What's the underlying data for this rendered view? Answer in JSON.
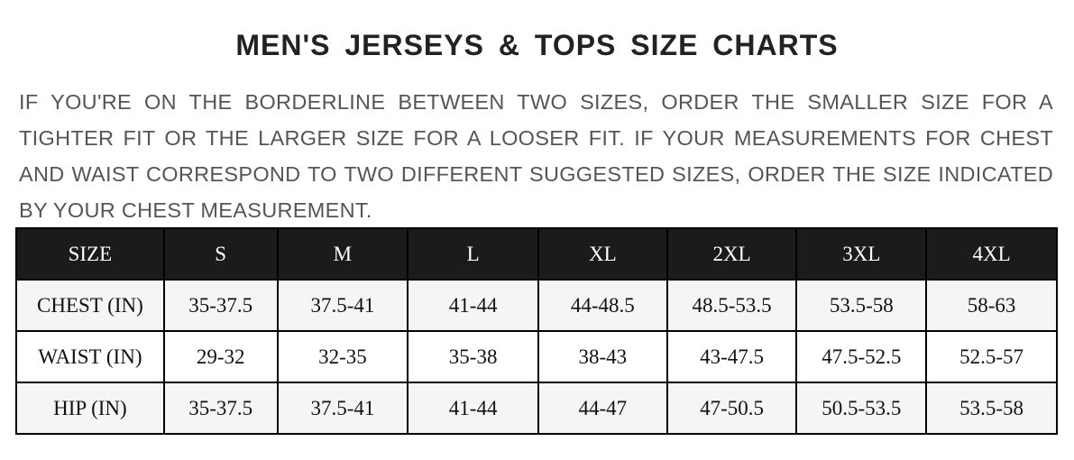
{
  "title": "MEN'S JERSEYS & TOPS SIZE CHARTS",
  "note": "IF YOU'RE ON THE BORDERLINE BETWEEN TWO SIZES, ORDER THE SMALLER SIZE FOR A TIGHTER FIT OR THE LARGER SIZE FOR A LOOSER FIT. IF YOUR MEASUREMENTS FOR CHEST AND WAIST CORRESPOND TO TWO DIFFERENT SUGGESTED SIZES, ORDER THE SIZE INDICATED BY YOUR CHEST MEASUREMENT.",
  "table": {
    "headers": [
      "SIZE",
      "S",
      "M",
      "L",
      "XL",
      "2XL",
      "3XL",
      "4XL"
    ],
    "rows": [
      [
        "CHEST (IN)",
        "35-37.5",
        "37.5-41",
        "41-44",
        "44-48.5",
        "48.5-53.5",
        "53.5-58",
        "58-63"
      ],
      [
        "WAIST (IN)",
        "29-32",
        "32-35",
        "35-38",
        "38-43",
        "43-47.5",
        "47.5-52.5",
        "52.5-57"
      ],
      [
        "HIP (IN)",
        "35-37.5",
        "37.5-41",
        "41-44",
        "44-47",
        "47-50.5",
        "50.5-53.5",
        "53.5-58"
      ]
    ]
  },
  "colors": {
    "header_bg": "#1b1b1b",
    "shade_row": "#f4f5f7",
    "text": "#555555"
  }
}
